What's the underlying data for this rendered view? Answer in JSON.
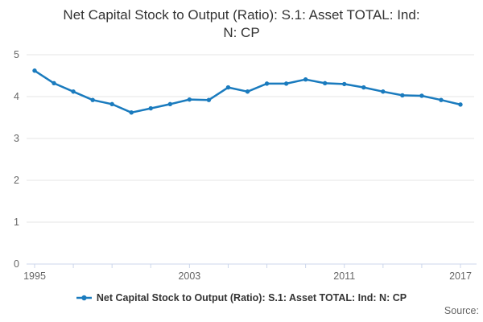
{
  "title": {
    "text": "Net Capital Stock to Output (Ratio): S.1: Asset TOTAL: Ind: N: CP",
    "lines": [
      "Net Capital Stock to Output (Ratio): S.1: Asset TOTAL: Ind:",
      "N: CP"
    ]
  },
  "legend": {
    "label": "Net Capital Stock to Output (Ratio): S.1: Asset TOTAL: Ind: N: CP",
    "marker": "line-with-dot"
  },
  "source": {
    "label": "Source:"
  },
  "colors": {
    "series": "#1a7bbe",
    "grid": "#e6e6e6",
    "axis": "#ccd6eb",
    "tick_label": "#666666",
    "title_text": "#333333",
    "source_text": "#666666"
  },
  "chart_data": {
    "type": "line",
    "title": "Net Capital Stock to Output (Ratio): S.1: Asset TOTAL: Ind: N: CP",
    "x": [
      1995,
      1996,
      1997,
      1998,
      1999,
      2000,
      2001,
      2002,
      2003,
      2004,
      2005,
      2006,
      2007,
      2008,
      2009,
      2010,
      2011,
      2012,
      2013,
      2014,
      2015,
      2016,
      2017
    ],
    "series": [
      {
        "name": "Net Capital Stock to Output (Ratio): S.1: Asset TOTAL: Ind: N: CP",
        "values": [
          4.62,
          4.32,
          4.12,
          3.92,
          3.82,
          3.62,
          3.72,
          3.82,
          3.93,
          3.92,
          4.22,
          4.12,
          4.31,
          4.31,
          4.41,
          4.32,
          4.3,
          4.22,
          4.12,
          4.03,
          4.02,
          3.92,
          3.81
        ]
      }
    ],
    "ylim": [
      0,
      5
    ],
    "yticks": [
      0,
      1,
      2,
      3,
      4,
      5
    ],
    "xtick_marks": [
      1995,
      1997,
      1999,
      2001,
      2003,
      2005,
      2007,
      2009,
      2011,
      2013,
      2015,
      2017
    ],
    "xtick_labels": [
      1995,
      2003,
      2011,
      2017
    ],
    "grid": "horizontal-only",
    "legend_position": "bottom",
    "marker_shape": "dot"
  }
}
